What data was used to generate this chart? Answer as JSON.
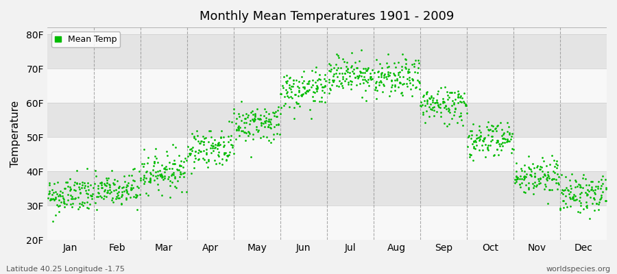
{
  "title": "Monthly Mean Temperatures 1901 - 2009",
  "ylabel": "Temperature",
  "xlabel": "",
  "bottom_left": "Latitude 40.25 Longitude -1.75",
  "bottom_right": "worldspecies.org",
  "legend_label": "Mean Temp",
  "dot_color": "#00bb00",
  "background_color": "#f2f2f2",
  "band_light": "#f8f8f8",
  "band_dark": "#e4e4e4",
  "dashed_line_color": "#888888",
  "ylim": [
    20,
    82
  ],
  "yticks": [
    20,
    30,
    40,
    50,
    60,
    70,
    80
  ],
  "ytick_labels": [
    "20F",
    "30F",
    "40F",
    "50F",
    "60F",
    "70F",
    "80F"
  ],
  "months": [
    "Jan",
    "Feb",
    "Mar",
    "Apr",
    "May",
    "Jun",
    "Jul",
    "Aug",
    "Sep",
    "Oct",
    "Nov",
    "Dec"
  ],
  "mean_temps_F": [
    33.0,
    34.5,
    40.0,
    47.0,
    54.0,
    63.5,
    68.5,
    67.0,
    59.5,
    49.5,
    38.5,
    33.5
  ],
  "amplitude": 18.5,
  "noise_std": 2.8,
  "n_years": 109,
  "seed": 42,
  "marker_size": 4,
  "dpi": 100,
  "fig_width": 9.0,
  "fig_height": 4.0
}
